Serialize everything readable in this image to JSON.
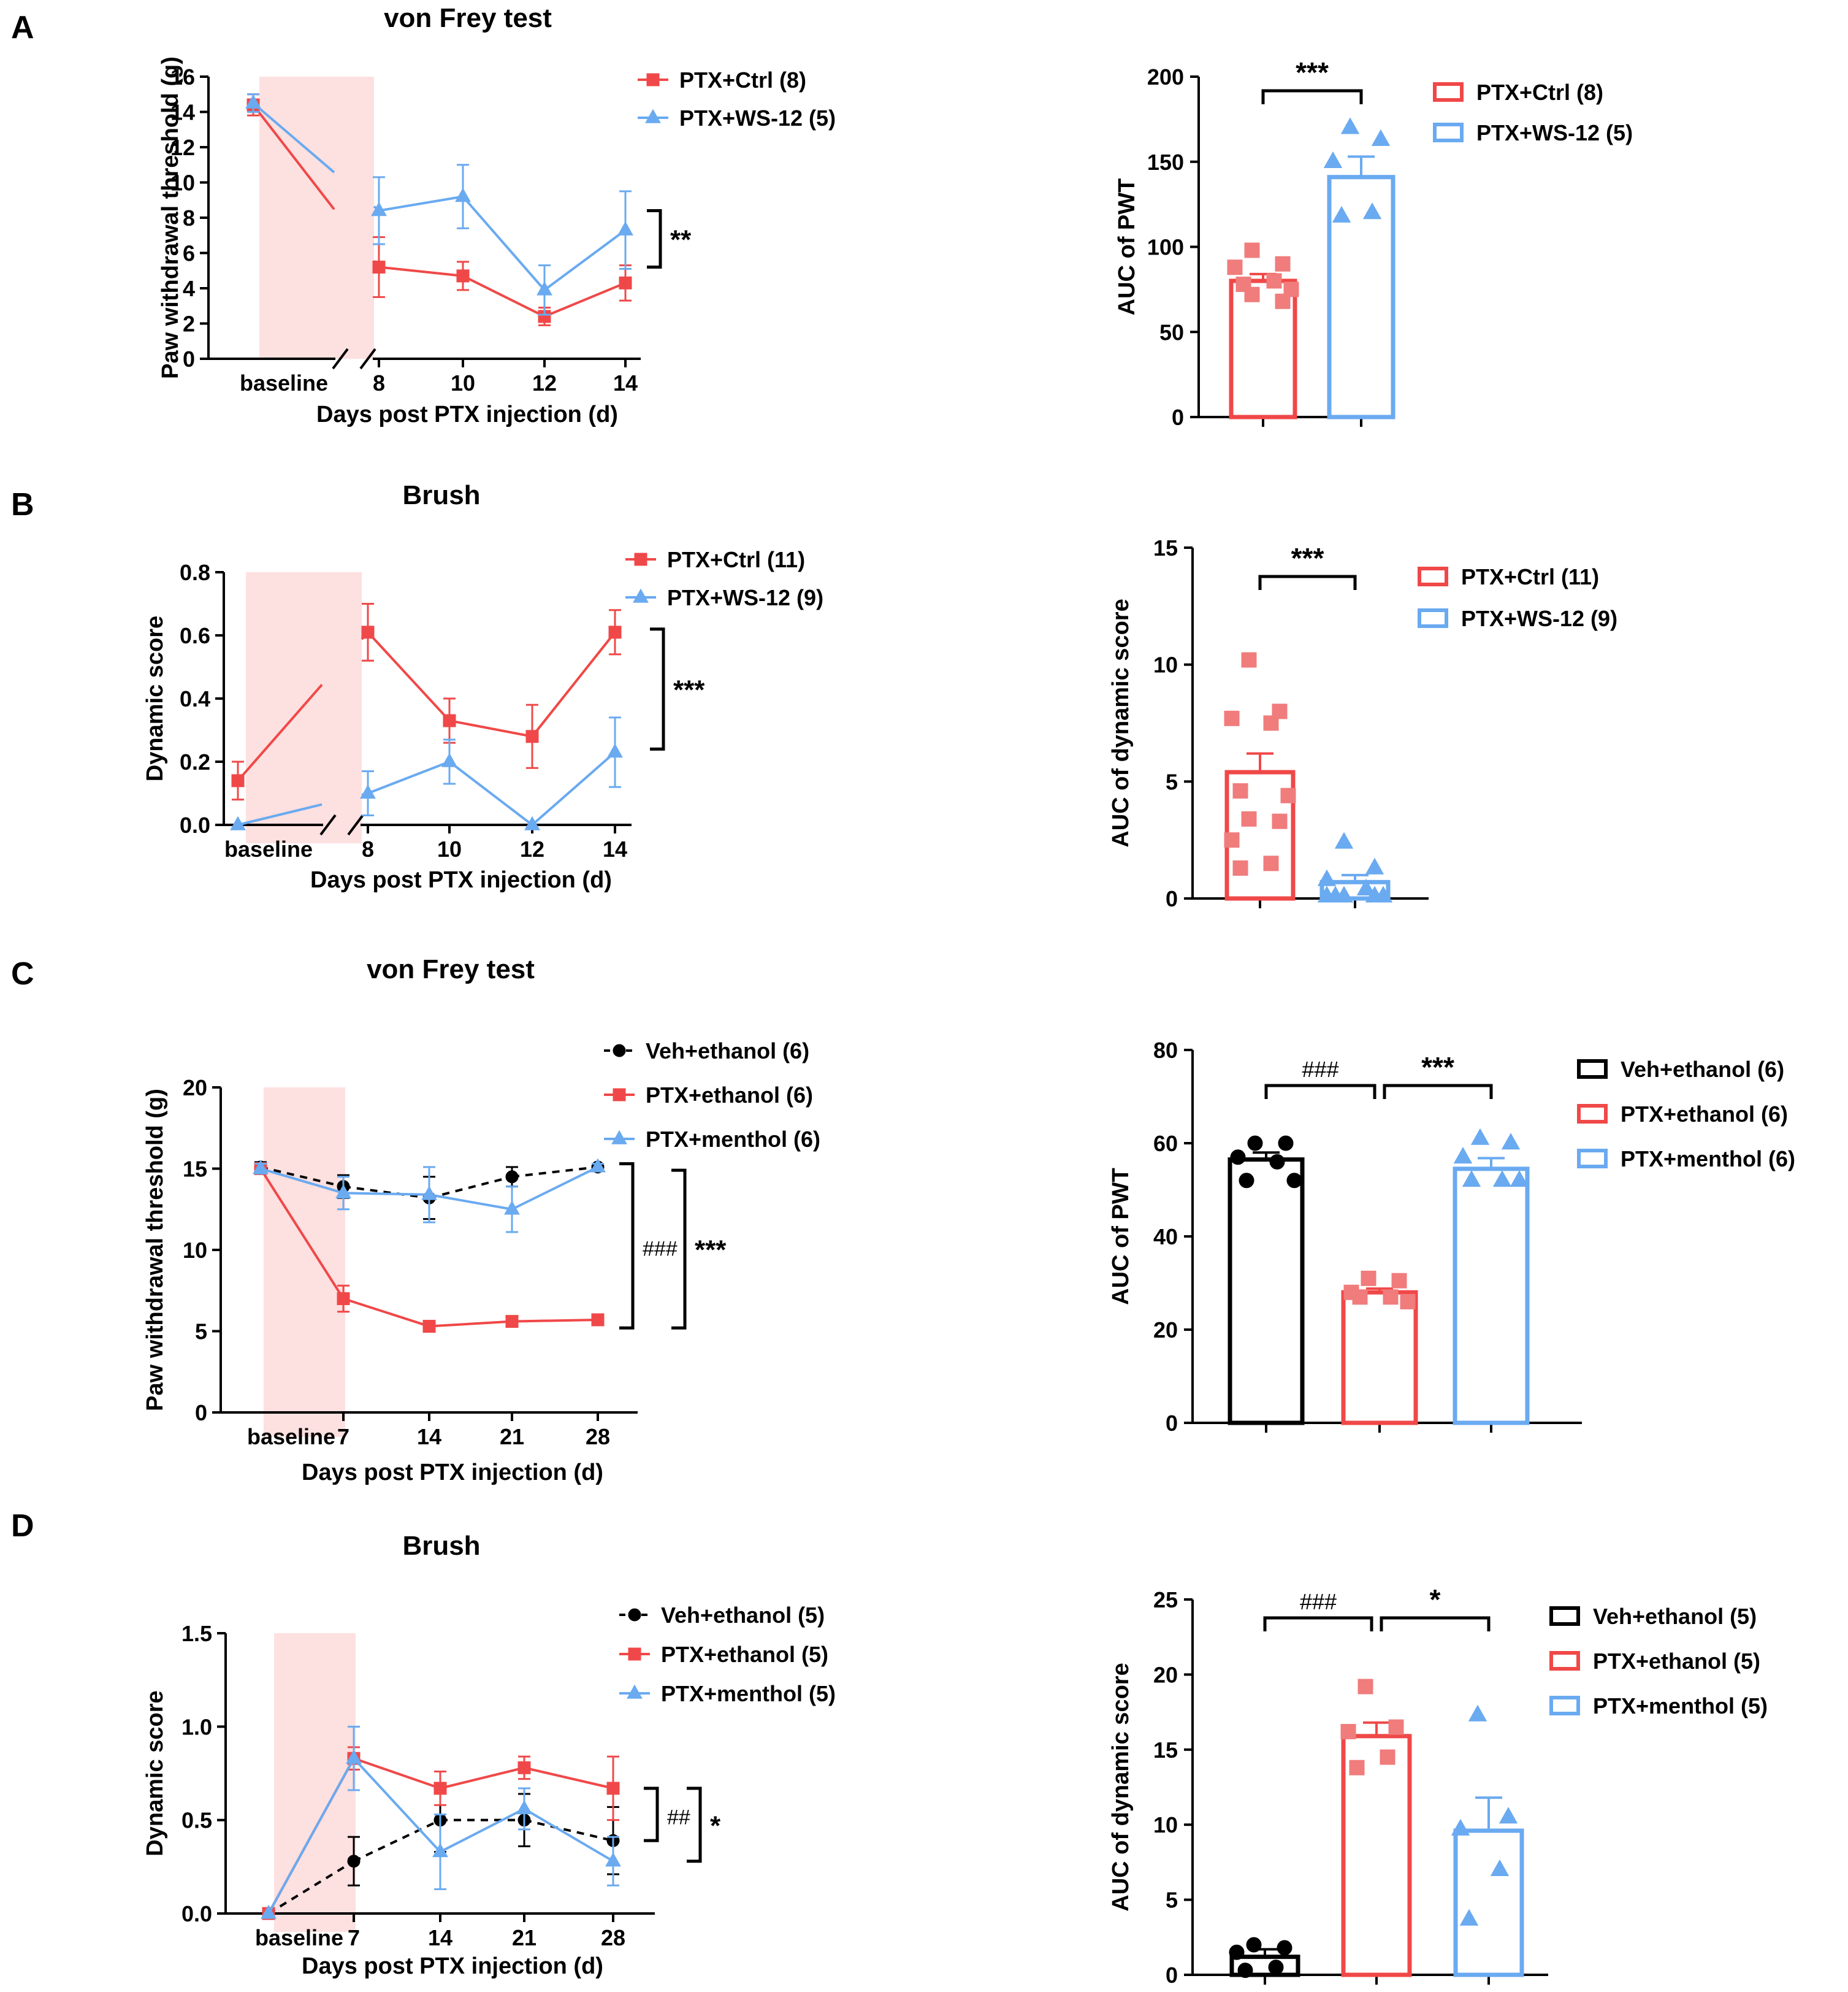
{
  "colors": {
    "red": "#f04848",
    "red_light": "#f07c7c",
    "blue": "#6aaaf0",
    "black": "#000000",
    "shade": "#fde0e0"
  },
  "chart_data": [
    {
      "id": "A-line",
      "panel_letter": "A",
      "type": "line",
      "title": "von Frey test",
      "xlabel": "Days post  PTX injection (d)",
      "ylabel": "Paw withdrawal threshold (g)",
      "categories": [
        "baseline",
        "8",
        "10",
        "12",
        "14"
      ],
      "ylim": [
        0,
        16
      ],
      "yticks": [
        0,
        2,
        4,
        6,
        8,
        10,
        12,
        14,
        16
      ],
      "series": [
        {
          "name": "PTX+Ctrl (8)",
          "color": "#f04848",
          "marker": "square",
          "dashed": false,
          "values": [
            14.4,
            5.2,
            4.7,
            2.4,
            4.3
          ],
          "errors": [
            0.6,
            1.7,
            0.8,
            0.5,
            1.0
          ]
        },
        {
          "name": "PTX+WS-12 (5)",
          "color": "#6aaaf0",
          "marker": "triangle",
          "dashed": false,
          "values": [
            14.5,
            8.4,
            9.2,
            3.9,
            7.3
          ],
          "errors": [
            0.5,
            1.9,
            1.8,
            1.4,
            2.2
          ]
        }
      ],
      "annotations": [
        {
          "label": "**",
          "from": 5.2,
          "to": 8.4
        }
      ]
    },
    {
      "id": "A-bar",
      "type": "bar",
      "ylabel": "AUC of PWT",
      "ylim": [
        0,
        200
      ],
      "yticks": [
        0,
        50,
        100,
        150,
        200
      ],
      "categories": [
        "PTX+Ctrl (8)",
        "PTX+WS-12 (5)"
      ],
      "bars": [
        {
          "name": "PTX+Ctrl (8)",
          "color": "#f04848",
          "marker": "square",
          "value": 80,
          "sem": 4,
          "points": [
            98,
            90,
            88,
            80,
            78,
            75,
            72,
            68
          ]
        },
        {
          "name": "PTX+WS-12 (5)",
          "color": "#6aaaf0",
          "marker": "triangle",
          "value": 141,
          "sem": 12,
          "points": [
            170,
            163,
            150,
            120,
            118
          ]
        }
      ],
      "brackets": [
        {
          "from": 0,
          "to": 1,
          "label": "***"
        }
      ]
    },
    {
      "id": "B-line",
      "panel_letter": "B",
      "type": "line",
      "title": "Brush",
      "xlabel": "Days post  PTX injection (d)",
      "ylabel": "Dynamic score",
      "categories": [
        "baseline",
        "8",
        "10",
        "12",
        "14"
      ],
      "ylim": [
        0,
        0.8
      ],
      "yticks": [
        "0.0",
        "0.2",
        "0.4",
        "0.6",
        "0.8"
      ],
      "series": [
        {
          "name": "PTX+Ctrl (11)",
          "color": "#f04848",
          "marker": "square",
          "dashed": false,
          "values": [
            0.14,
            0.61,
            0.33,
            0.28,
            0.61
          ],
          "errors": [
            0.06,
            0.09,
            0.07,
            0.1,
            0.07
          ]
        },
        {
          "name": "PTX+WS-12 (9)",
          "color": "#6aaaf0",
          "marker": "triangle",
          "dashed": false,
          "values": [
            0.0,
            0.1,
            0.2,
            0.0,
            0.23
          ],
          "errors": [
            0,
            0.07,
            0.07,
            0,
            0.11
          ]
        }
      ],
      "annotations": [
        {
          "label": "***",
          "from": 0.24,
          "to": 0.62
        }
      ]
    },
    {
      "id": "B-bar",
      "type": "bar",
      "ylabel": "AUC of dynamic score",
      "ylim": [
        0,
        15
      ],
      "yticks": [
        0,
        5,
        10,
        15
      ],
      "categories": [
        "PTX+Ctrl (11)",
        "PTX+WS-12 (9)"
      ],
      "bars": [
        {
          "name": "PTX+Ctrl (11)",
          "color": "#f04848",
          "marker": "square",
          "value": 5.4,
          "sem": 0.8,
          "points": [
            10.2,
            8.0,
            7.7,
            7.5,
            4.6,
            4.4,
            3.4,
            3.3,
            2.5,
            1.5,
            1.3
          ]
        },
        {
          "name": "PTX+WS-12 (9)",
          "color": "#6aaaf0",
          "marker": "triangle",
          "value": 0.7,
          "sem": 0.3,
          "points": [
            2.4,
            1.3,
            0.8,
            0.4,
            0.1,
            0.1,
            0.1,
            0.1,
            0.1
          ]
        }
      ],
      "brackets": [
        {
          "from": 0,
          "to": 1,
          "label": "***"
        }
      ]
    },
    {
      "id": "C-line",
      "panel_letter": "C",
      "type": "line",
      "title": "von Frey test",
      "xlabel": "Days post  PTX injection (d)",
      "ylabel": "Paw withdrawal threshold (g)",
      "categories": [
        "baseline",
        "7",
        "14",
        "21",
        "28"
      ],
      "ylim": [
        0,
        20
      ],
      "yticks": [
        0,
        5,
        10,
        15,
        20
      ],
      "series": [
        {
          "name": "Veh+ethanol (6)",
          "color": "#000000",
          "marker": "circle",
          "dashed": true,
          "values": [
            15.1,
            13.9,
            13.2,
            14.5,
            15.1
          ],
          "errors": [
            0.3,
            0.7,
            1.3,
            0.6,
            0.2
          ]
        },
        {
          "name": "PTX+ethanol (6)",
          "color": "#f04848",
          "marker": "square",
          "dashed": false,
          "values": [
            15.0,
            7.0,
            5.3,
            5.6,
            5.7
          ],
          "errors": [
            0.3,
            0.8,
            0.2,
            0.2,
            0.2
          ]
        },
        {
          "name": "PTX+menthol (6)",
          "color": "#6aaaf0",
          "marker": "triangle",
          "dashed": false,
          "values": [
            15.0,
            13.5,
            13.4,
            12.5,
            15.1
          ],
          "errors": [
            0.3,
            1.0,
            1.7,
            1.4,
            0.2
          ]
        }
      ],
      "annotations": [
        {
          "label": "###",
          "from": 5.2,
          "to": 15.3
        },
        {
          "label": "***",
          "from": 5.2,
          "to": 14.9
        }
      ]
    },
    {
      "id": "C-bar",
      "type": "bar",
      "ylabel": "AUC of PWT",
      "ylim": [
        0,
        80
      ],
      "yticks": [
        0,
        20,
        40,
        60,
        80
      ],
      "categories": [
        "Veh+ethanol (6)",
        "PTX+ethanol (6)",
        "PTX+menthol (6)"
      ],
      "bars": [
        {
          "name": "Veh+ethanol (6)",
          "color": "#000000",
          "marker": "circle",
          "value": 56.5,
          "sem": 1.5,
          "points": [
            60,
            60,
            57,
            56,
            52,
            52
          ]
        },
        {
          "name": "PTX+ethanol (6)",
          "color": "#f04848",
          "marker": "square",
          "value": 28,
          "sem": 0.8,
          "points": [
            31,
            30.5,
            28,
            27,
            27,
            26
          ]
        },
        {
          "name": "PTX+menthol (6)",
          "color": "#6aaaf0",
          "marker": "triangle",
          "value": 54.5,
          "sem": 2.3,
          "points": [
            61,
            60,
            57,
            52,
            52,
            52
          ]
        }
      ],
      "brackets": [
        {
          "from": 0,
          "to": 1,
          "label": "###"
        },
        {
          "from": 1,
          "to": 2,
          "label": "***"
        }
      ]
    },
    {
      "id": "D-line",
      "panel_letter": "D",
      "type": "line",
      "title": "Brush",
      "xlabel": "Days post  PTX injection (d)",
      "ylabel": "Dynamic score",
      "categories": [
        "baseline",
        "7",
        "14",
        "21",
        "28"
      ],
      "ylim": [
        0,
        1.5
      ],
      "yticks": [
        "0.0",
        "0.5",
        "1.0",
        "1.5"
      ],
      "series": [
        {
          "name": "Veh+ethanol (5)",
          "color": "#000000",
          "marker": "circle",
          "dashed": true,
          "values": [
            0.0,
            0.28,
            0.5,
            0.5,
            0.39
          ],
          "errors": [
            0,
            0.13,
            0.17,
            0.14,
            0.18
          ]
        },
        {
          "name": "PTX+ethanol (5)",
          "color": "#f04848",
          "marker": "square",
          "dashed": false,
          "values": [
            0.0,
            0.83,
            0.67,
            0.78,
            0.67
          ],
          "errors": [
            0,
            0.06,
            0.09,
            0.06,
            0.17
          ]
        },
        {
          "name": "PTX+menthol (5)",
          "color": "#6aaaf0",
          "marker": "triangle",
          "dashed": false,
          "values": [
            0.0,
            0.83,
            0.33,
            0.56,
            0.28
          ],
          "errors": [
            0,
            0.17,
            0.2,
            0.11,
            0.13
          ]
        }
      ],
      "annotations": [
        {
          "label": "##",
          "from": 0.39,
          "to": 0.67
        },
        {
          "label": "*",
          "from": 0.28,
          "to": 0.67
        }
      ]
    },
    {
      "id": "D-bar",
      "type": "bar",
      "ylabel": "AUC of dynamic score",
      "ylim": [
        0,
        25
      ],
      "yticks": [
        0,
        5,
        10,
        15,
        20,
        25
      ],
      "categories": [
        "Veh+ethanol (5)",
        "PTX+ethanol (5)",
        "PTX+menthol (5)"
      ],
      "bars": [
        {
          "name": "Veh+ethanol (5)",
          "color": "#000000",
          "marker": "circle",
          "value": 1.2,
          "sem": 0.5,
          "points": [
            2.0,
            1.8,
            1.5,
            0.5,
            0.3
          ]
        },
        {
          "name": "PTX+ethanol (5)",
          "color": "#f04848",
          "marker": "square",
          "value": 15.9,
          "sem": 0.9,
          "points": [
            19.2,
            16.5,
            16.2,
            14.5,
            13.8
          ]
        },
        {
          "name": "PTX+menthol (5)",
          "color": "#6aaaf0",
          "marker": "triangle",
          "value": 9.6,
          "sem": 2.2,
          "points": [
            17.3,
            10.5,
            9.7,
            7.0,
            3.7
          ]
        }
      ],
      "brackets": [
        {
          "from": 0,
          "to": 1,
          "label": "###"
        },
        {
          "from": 1,
          "to": 2,
          "label": "*"
        }
      ]
    }
  ]
}
